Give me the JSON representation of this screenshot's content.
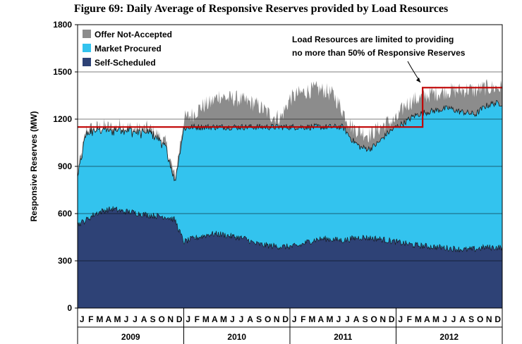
{
  "title": "Figure 69:  Daily Average of Responsive Reserves provided by Load Resources",
  "chart_data": {
    "type": "area",
    "ylabel": "Responsive Reserves (MW)",
    "ylim": [
      0,
      1800
    ],
    "y_ticks": [
      0,
      300,
      600,
      900,
      1200,
      1500,
      1800
    ],
    "grid": true,
    "legend_position": "top-left",
    "month_labels": [
      "J",
      "F",
      "M",
      "A",
      "M",
      "J",
      "J",
      "A",
      "S",
      "O",
      "N",
      "D"
    ],
    "years": [
      "2009",
      "2010",
      "2011",
      "2012"
    ],
    "colors": {
      "offer_not_accepted": "#8c8c8c",
      "market_procured": "#33c3ee",
      "self_scheduled": "#2e4276",
      "limit_line": "#c00000"
    },
    "series": [
      {
        "name": "Offer Not-Accepted",
        "key": "offer_not_accepted",
        "monthly_values": [
          850,
          1130,
          1140,
          1150,
          1140,
          1160,
          1140,
          1130,
          1140,
          1100,
          1040,
          820,
          1200,
          1230,
          1280,
          1300,
          1350,
          1330,
          1330,
          1310,
          1300,
          1260,
          1220,
          1210,
          1330,
          1360,
          1380,
          1390,
          1380,
          1350,
          1250,
          1150,
          1120,
          1100,
          1140,
          1180,
          1190,
          1290,
          1320,
          1340,
          1360,
          1370,
          1380,
          1380,
          1390,
          1380,
          1400,
          1400
        ]
      },
      {
        "name": "Market Procured",
        "key": "market_procured",
        "monthly_values": [
          850,
          1120,
          1130,
          1140,
          1130,
          1150,
          1130,
          1120,
          1130,
          1090,
          1020,
          800,
          1140,
          1150,
          1150,
          1150,
          1150,
          1150,
          1150,
          1150,
          1150,
          1150,
          1150,
          1150,
          1150,
          1150,
          1150,
          1150,
          1150,
          1150,
          1150,
          1070,
          1020,
          1010,
          1050,
          1110,
          1150,
          1180,
          1220,
          1240,
          1250,
          1260,
          1270,
          1250,
          1240,
          1230,
          1280,
          1300
        ]
      },
      {
        "name": "Self-Scheduled",
        "key": "self_scheduled",
        "monthly_values": [
          530,
          560,
          600,
          620,
          630,
          615,
          610,
          600,
          590,
          585,
          580,
          560,
          420,
          440,
          455,
          470,
          470,
          460,
          450,
          440,
          410,
          400,
          395,
          390,
          390,
          395,
          420,
          435,
          440,
          435,
          430,
          440,
          450,
          445,
          440,
          430,
          420,
          410,
          400,
          395,
          390,
          385,
          380,
          375,
          370,
          375,
          385,
          385
        ]
      }
    ],
    "limit_line": {
      "name": "Load Resources limit",
      "segments": [
        {
          "from_year_index": 0,
          "to_month_index": 39,
          "value": 1150
        },
        {
          "from_month_index": 39,
          "to_month_index": 48,
          "value": 1400
        }
      ]
    },
    "annotation": {
      "lines": [
        "Load Resources are limited to providing",
        "no more than 50% of Responsive Reserves"
      ]
    }
  }
}
